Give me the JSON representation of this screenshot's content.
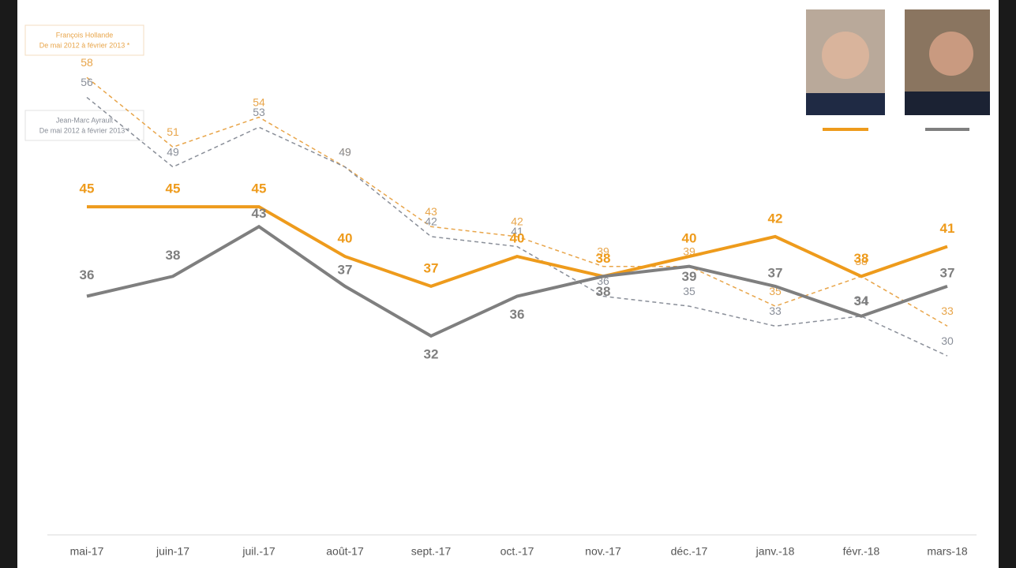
{
  "chart_data": {
    "type": "line",
    "categories": [
      "mai-17",
      "juin-17",
      "juil.-17",
      "août-17",
      "sept.-17",
      "oct.-17",
      "nov.-17",
      "déc.-17",
      "janv.-18",
      "févr.-18",
      "mars-18"
    ],
    "ylim": [
      12,
      60
    ],
    "series": [
      {
        "name": "François Hollande",
        "period": "De mai 2012 à février 2013 *",
        "color": "#e8a54a",
        "dashed": true,
        "values": [
          58,
          51,
          54,
          49,
          43,
          42,
          39,
          39,
          35,
          38,
          33
        ]
      },
      {
        "name": "Jean-Marc Ayrault",
        "period": "De mai 2012 à février 2013 *",
        "color": "#8a8f99",
        "dashed": true,
        "values": [
          56,
          49,
          53,
          49,
          42,
          41,
          36,
          35,
          33,
          34,
          30
        ]
      },
      {
        "color": "#ee9b1c",
        "dashed": false,
        "values": [
          45,
          45,
          45,
          40,
          37,
          40,
          38,
          40,
          42,
          38,
          41
        ]
      },
      {
        "color": "#7f7f7f",
        "dashed": false,
        "values": [
          36,
          38,
          43,
          37,
          32,
          36,
          38,
          39,
          37,
          34,
          37
        ]
      }
    ]
  }
}
